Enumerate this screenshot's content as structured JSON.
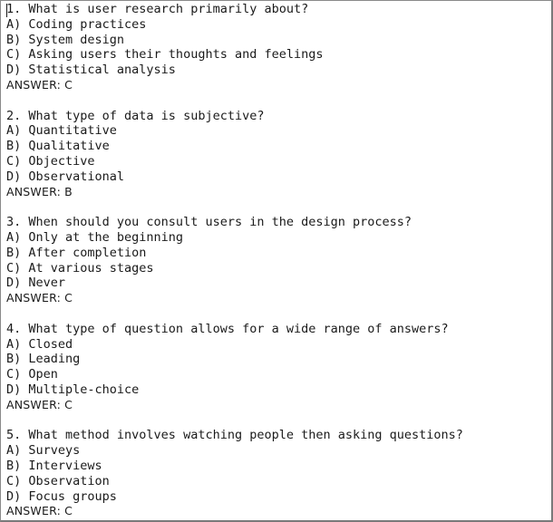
{
  "questions": [
    {
      "stem": "1. What is user research primarily about?",
      "options": [
        "A) Coding practices",
        "B) System design",
        "C) Asking users their thoughts and feelings",
        "D) Statistical analysis"
      ],
      "answer": "ANSWER: C"
    },
    {
      "stem": "2. What type of data is subjective?",
      "options": [
        "A) Quantitative",
        "B) Qualitative",
        "C) Objective",
        "D) Observational"
      ],
      "answer": "ANSWER: B"
    },
    {
      "stem": "3. When should you consult users in the design process?",
      "options": [
        "A) Only at the beginning",
        "B) After completion",
        "C) At various stages",
        "D) Never"
      ],
      "answer": "ANSWER: C"
    },
    {
      "stem": "4. What type of question allows for a wide range of answers?",
      "options": [
        "A) Closed",
        "B) Leading",
        "C) Open",
        "D) Multiple-choice"
      ],
      "answer": "ANSWER: C"
    },
    {
      "stem": "5. What method involves watching people then asking questions?",
      "options": [
        "A) Surveys",
        "B) Interviews",
        "C) Observation",
        "D) Focus groups"
      ],
      "answer": "ANSWER: C"
    }
  ]
}
